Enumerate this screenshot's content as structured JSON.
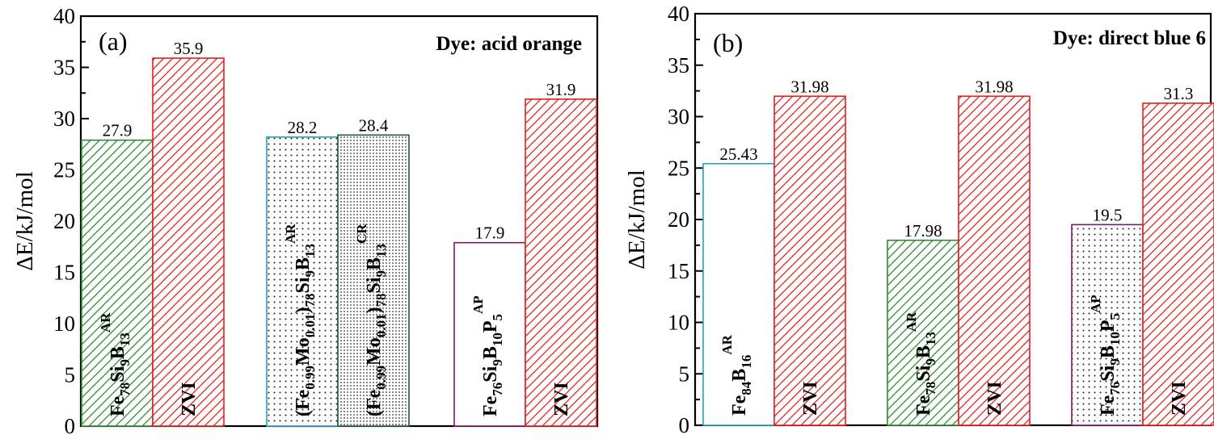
{
  "chart_data": [
    {
      "type": "bar",
      "panel_label": "(a)",
      "title": "Dye: acid orange",
      "ylabel": "ΔE/kJ/mol",
      "ylim": [
        0,
        40
      ],
      "yticks": [
        "0",
        "5",
        "10",
        "15",
        "20",
        "25",
        "30",
        "35",
        "40"
      ],
      "bars": [
        {
          "label_parts": [
            [
              "Fe",
              ""
            ],
            [
              "78",
              "sub"
            ],
            [
              "Si",
              ""
            ],
            [
              "9",
              "sub"
            ],
            [
              "B",
              ""
            ],
            [
              "13",
              "sub"
            ],
            [
              "AR",
              "sup"
            ]
          ],
          "value": 27.9,
          "value_label": "27.9",
          "color": "#2e8b2e",
          "pattern": "green-diag"
        },
        {
          "label_parts": [
            [
              "ZVI",
              ""
            ]
          ],
          "value": 35.9,
          "value_label": "35.9",
          "color": "#e0201e",
          "pattern": "red-diag"
        },
        {
          "label_parts": [
            [
              "(Fe",
              ""
            ],
            [
              "0.99",
              "sub"
            ],
            [
              "Mo",
              ""
            ],
            [
              "0.01",
              "sub"
            ],
            [
              ")",
              ""
            ],
            [
              "78",
              "sub"
            ],
            [
              "Si",
              ""
            ],
            [
              "9",
              "sub"
            ],
            [
              "B",
              ""
            ],
            [
              "13",
              "sub"
            ],
            [
              "AR",
              "sup"
            ]
          ],
          "value": 28.2,
          "value_label": "28.2",
          "color": "#2aa0c0",
          "pattern": "dots-sparse"
        },
        {
          "label_parts": [
            [
              "(Fe",
              ""
            ],
            [
              "0.99",
              "sub"
            ],
            [
              "Mo",
              ""
            ],
            [
              "0.01",
              "sub"
            ],
            [
              ")",
              ""
            ],
            [
              "78",
              "sub"
            ],
            [
              "Si",
              ""
            ],
            [
              "9",
              "sub"
            ],
            [
              "B",
              ""
            ],
            [
              "13",
              "sub"
            ],
            [
              "CR",
              "sup"
            ]
          ],
          "value": 28.4,
          "value_label": "28.4",
          "color": "#1f5d3a",
          "pattern": "dots-dense"
        },
        {
          "label_parts": [
            [
              "Fe",
              ""
            ],
            [
              "76",
              "sub"
            ],
            [
              "Si",
              ""
            ],
            [
              "9",
              "sub"
            ],
            [
              "B",
              ""
            ],
            [
              "10",
              "sub"
            ],
            [
              "P",
              ""
            ],
            [
              "5",
              "sub"
            ],
            [
              "AP",
              "sup"
            ]
          ],
          "value": 17.9,
          "value_label": "17.9",
          "color": "#7a1a6a",
          "pattern": "none"
        },
        {
          "label_parts": [
            [
              "ZVI",
              ""
            ]
          ],
          "value": 31.9,
          "value_label": "31.9",
          "color": "#e0201e",
          "pattern": "red-diag"
        }
      ]
    },
    {
      "type": "bar",
      "panel_label": "(b)",
      "title": "Dye: direct blue 6",
      "ylabel": "ΔE/kJ/mol",
      "ylim": [
        0,
        40
      ],
      "yticks": [
        "0",
        "5",
        "10",
        "15",
        "20",
        "25",
        "30",
        "35",
        "40"
      ],
      "bars": [
        {
          "label_parts": [
            [
              "Fe",
              ""
            ],
            [
              "84",
              "sub"
            ],
            [
              "B",
              ""
            ],
            [
              "16",
              "sub"
            ],
            [
              "AR",
              "sup"
            ]
          ],
          "value": 25.43,
          "value_label": "25.43",
          "color": "#2aa0c0",
          "pattern": "none"
        },
        {
          "label_parts": [
            [
              "ZVI",
              ""
            ]
          ],
          "value": 31.98,
          "value_label": "31.98",
          "color": "#e0201e",
          "pattern": "red-diag"
        },
        {
          "label_parts": [
            [
              "Fe",
              ""
            ],
            [
              "78",
              "sub"
            ],
            [
              "Si",
              ""
            ],
            [
              "9",
              "sub"
            ],
            [
              "B",
              ""
            ],
            [
              "13",
              "sub"
            ],
            [
              "AR",
              "sup"
            ]
          ],
          "value": 17.98,
          "value_label": "17.98",
          "color": "#2e8b2e",
          "pattern": "green-diag"
        },
        {
          "label_parts": [
            [
              "ZVI",
              ""
            ]
          ],
          "value": 31.98,
          "value_label": "31.98",
          "color": "#e0201e",
          "pattern": "red-diag"
        },
        {
          "label_parts": [
            [
              "Fe",
              ""
            ],
            [
              "76",
              "sub"
            ],
            [
              "Si",
              ""
            ],
            [
              "9",
              "sub"
            ],
            [
              "B",
              ""
            ],
            [
              "10",
              "sub"
            ],
            [
              "P",
              ""
            ],
            [
              "5",
              "sub"
            ],
            [
              "AP",
              "sup"
            ]
          ],
          "value": 19.5,
          "value_label": "19.5",
          "color": "#7a1a6a",
          "pattern": "dots-sparse"
        },
        {
          "label_parts": [
            [
              "ZVI",
              ""
            ]
          ],
          "value": 31.3,
          "value_label": "31.3",
          "color": "#e0201e",
          "pattern": "red-diag"
        }
      ]
    }
  ]
}
